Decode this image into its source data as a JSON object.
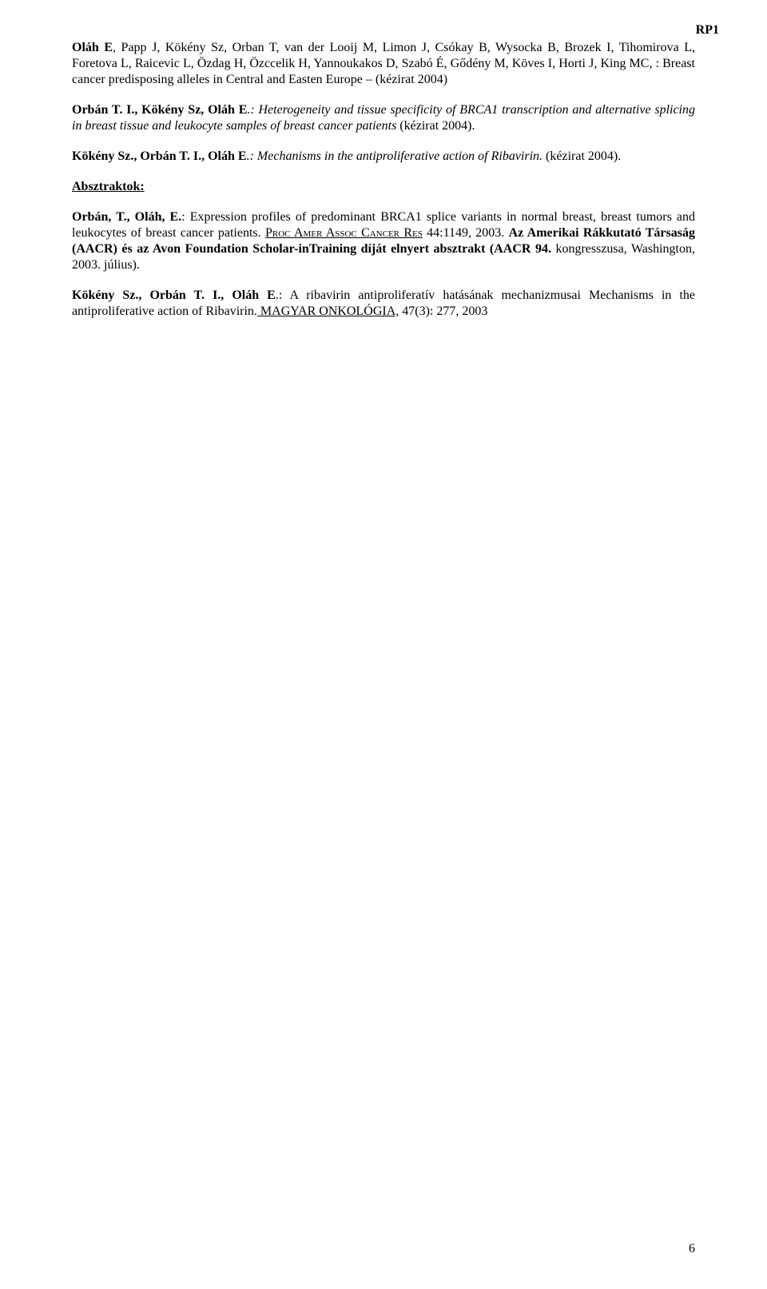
{
  "header": {
    "mark": "RP1"
  },
  "p1": {
    "authors": "Oláh E",
    "rest": ", Papp J, Kökény Sz, Orban T, van der Looij M, Limon J, Csókay B, Wysocka B, Brozek I, Tihomirova L, Foretova L, Raicevic L, Özdag H, Özccelik H, Yannoukakos D, Szabó É, Gődény M, Köves I, Horti J, King MC, : Breast cancer predisposing alleles in Central and Easten Europe  – (kézirat 2004)"
  },
  "p2": {
    "lead": "Orbán T. I., Kökény  Sz, Oláh E",
    "title": ".: Heterogeneity and tissue specificity of BRCA1 transcription and alternative splicing in breast tissue and leukocyte samples of breast cancer patients ",
    "tail": "(kézirat 2004)."
  },
  "p3": {
    "lead": "Kökény Sz., Orbán T. I., Oláh E",
    "title": ".: Mechanisms in the antiproliferative action of Ribavirin. ",
    "tail": "(kézirat 2004)."
  },
  "section": "Absztraktok:",
  "p4": {
    "lead": "Orbán, T., Oláh, E.",
    "mid": ": Expression profiles of predominant BRCA1 splice variants in normal breast, breast tumors and leukocytes of breast cancer patients. ",
    "journal_caps": "Proc Amer Assoc Cancer Res",
    "cite": " 44:1149, 2003. ",
    "bold_tail": "Az Amerikai Rákkutató Társaság (AACR) és az Avon Foundation Scholar-inTraining díját elnyert absztrakt (AACR 94.",
    "plain_tail": " kongresszusa, Washington, 2003. július)."
  },
  "p5": {
    "lead": "Kökény Sz., Orbán T. I., Oláh E",
    "mid": ".: A ribavirin antiproliferatív hatásának mechanizmusai Mechanisms in the antiproliferative action of Ribavirin.",
    "journal": " MAGYAR ONKOLÓGIA,",
    "cite": " 47(3): 277, 2003"
  },
  "pagenum": "6"
}
